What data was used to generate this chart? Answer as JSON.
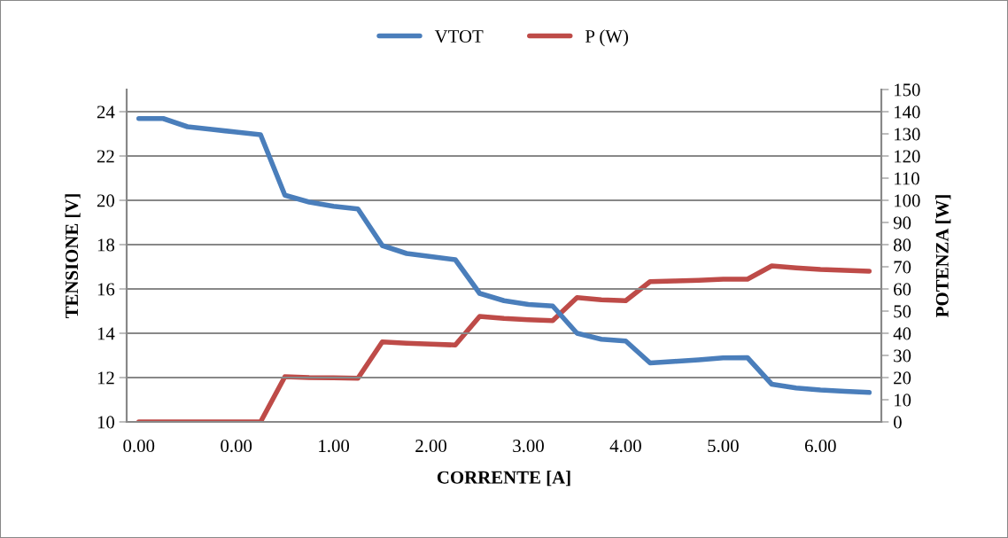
{
  "chart_data": {
    "type": "line",
    "xlabel": "CORRENTE [A]",
    "ylabel": "TENSIONE [V]",
    "y2label": "POTENZA [W]",
    "categories": [
      "0.00",
      null,
      null,
      null,
      "0.00",
      null,
      null,
      null,
      "1.00",
      null,
      null,
      null,
      "2.00",
      null,
      null,
      null,
      "3.00",
      null,
      null,
      null,
      "4.00",
      null,
      null,
      null,
      "5.00",
      null,
      null,
      null,
      "6.00",
      null,
      null
    ],
    "series": [
      {
        "name": "VTOT",
        "color": "#4a7ebb",
        "values": [
          23.69,
          23.69,
          23.32,
          23.2,
          23.08,
          22.96,
          20.23,
          19.92,
          19.73,
          19.61,
          17.96,
          17.6,
          17.46,
          17.32,
          15.8,
          15.47,
          15.3,
          15.23,
          14.0,
          13.73,
          13.65,
          12.66,
          12.73,
          12.8,
          12.89,
          12.9,
          11.7,
          11.53,
          11.44,
          11.38,
          11.33
        ]
      },
      {
        "name": "P (W)",
        "color": "#be4b48",
        "axis": "y2",
        "values": [
          0,
          0,
          0,
          0,
          0,
          0,
          20.4,
          20.0,
          19.9,
          19.7,
          36.1,
          35.5,
          35.1,
          34.7,
          47.6,
          46.7,
          46.1,
          45.7,
          56.1,
          55.1,
          54.7,
          63.3,
          63.6,
          63.9,
          64.4,
          64.4,
          70.4,
          69.5,
          68.8,
          68.4,
          68.0
        ]
      }
    ],
    "ylim": [
      10,
      25
    ],
    "yticks": [
      10,
      12,
      14,
      16,
      18,
      20,
      22,
      24
    ],
    "y2lim": [
      0,
      150
    ],
    "y2ticks": [
      0,
      10,
      20,
      30,
      40,
      50,
      60,
      70,
      80,
      90,
      100,
      110,
      120,
      130,
      140,
      150
    ],
    "grid": "y",
    "legend": "top",
    "marker": "none",
    "line_style": "solid"
  }
}
